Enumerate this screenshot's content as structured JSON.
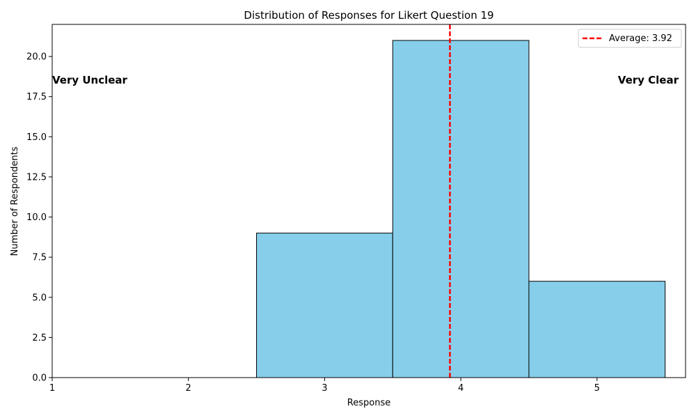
{
  "chart_data": {
    "type": "bar",
    "title": "Distribution of Responses for Likert Question 19",
    "xlabel": "Response",
    "ylabel": "Number of Respondents",
    "xlim": [
      1,
      5.65
    ],
    "ylim": [
      0,
      22
    ],
    "xticks": [
      "1",
      "2",
      "3",
      "4",
      "5"
    ],
    "yticks": [
      "0.0",
      "2.5",
      "5.0",
      "7.5",
      "10.0",
      "12.5",
      "15.0",
      "17.5",
      "20.0"
    ],
    "bins": [
      {
        "x": 3,
        "value": 9
      },
      {
        "x": 4,
        "value": 21
      },
      {
        "x": 5,
        "value": 6
      }
    ],
    "bin_width": 1,
    "average": {
      "value": 3.92,
      "label": "Average: 3.92"
    },
    "annotations": {
      "left": "Very Unclear",
      "right": "Very Clear"
    },
    "legend_position": "top-right",
    "grid": false,
    "colors": {
      "bar_fill": "#87ceeb",
      "bar_edge": "#000000",
      "average_line": "#ff0000"
    }
  }
}
